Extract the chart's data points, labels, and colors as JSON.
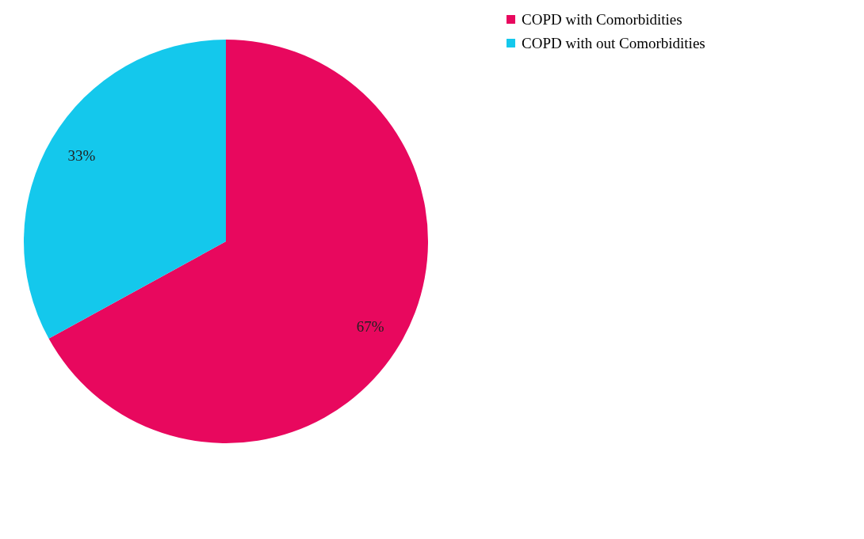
{
  "chart_data": {
    "type": "pie",
    "categories": [
      "COPD with Comorbidities",
      "COPD with out Comorbidities"
    ],
    "values": [
      67,
      33
    ],
    "colors": [
      "#e8085e",
      "#14c8ec"
    ],
    "value_labels": [
      "67%",
      "33%"
    ],
    "legend": "right"
  }
}
